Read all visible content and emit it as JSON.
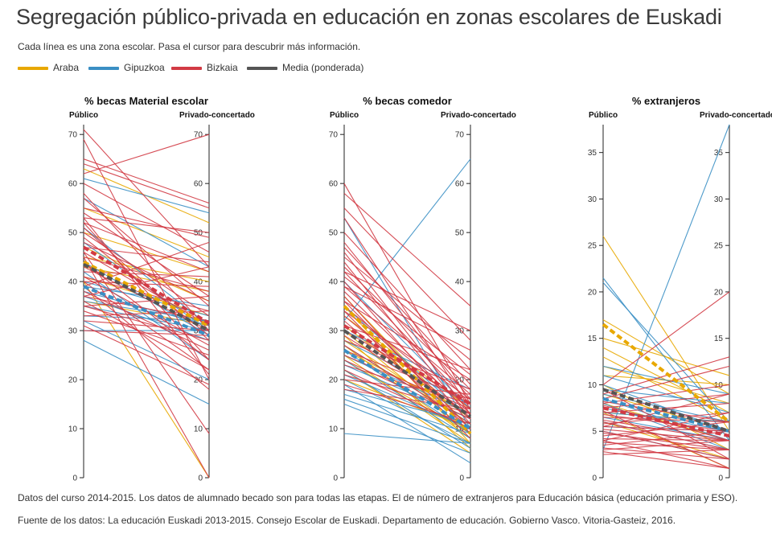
{
  "title": "Segregación público-privada en educación en zonas escolares de Euskadi",
  "subtitle": "Cada línea es una zona escolar. Pasa el cursor para descubrir más información.",
  "legend": [
    {
      "label": "Araba",
      "color": "#e8a800"
    },
    {
      "label": "Gipuzkoa",
      "color": "#3a8fc4"
    },
    {
      "label": "Bizkaia",
      "color": "#d23a44"
    },
    {
      "label": "Media (ponderada)",
      "color": "#555555"
    }
  ],
  "footnote_1": "Datos del curso 2014-2015. Los datos de alumnado becado son para todas las etapas. El de número de extranjeros para Educación básica (educación primaria y ESO).",
  "footnote_2": "Fuente de los datos: La educación Euskadi 2013-2015. Consejo Escolar de Euskadi. Departamento de educación. Gobierno Vasco. Vitoria-Gasteiz, 2016.",
  "chart_data": [
    {
      "type": "line",
      "title": "% becas Material escolar",
      "left_axis_label": "Público",
      "right_axis_label": "Privado-concertado",
      "ylim": [
        0,
        72
      ],
      "ticks": [
        0,
        10,
        20,
        30,
        40,
        50,
        60,
        70
      ],
      "series": [
        {
          "group": "Araba",
          "values": [
            [
              63,
              52
            ],
            [
              55,
              45
            ],
            [
              50,
              42
            ],
            [
              47,
              36
            ],
            [
              45,
              40
            ],
            [
              43,
              38
            ],
            [
              41,
              33
            ],
            [
              40,
              0
            ],
            [
              36,
              31
            ]
          ]
        },
        {
          "group": "Gipuzkoa",
          "values": [
            [
              61,
              54
            ],
            [
              57,
              43
            ],
            [
              51,
              31
            ],
            [
              48,
              30
            ],
            [
              44,
              29
            ],
            [
              42,
              24
            ],
            [
              40,
              33
            ],
            [
              39,
              35
            ],
            [
              38,
              31
            ],
            [
              37,
              28
            ],
            [
              36,
              32
            ],
            [
              35,
              30
            ],
            [
              33,
              32
            ],
            [
              32,
              20
            ],
            [
              30,
              30
            ],
            [
              28,
              15
            ]
          ]
        },
        {
          "group": "Bizkaia",
          "values": [
            [
              71,
              43
            ],
            [
              69,
              20
            ],
            [
              65,
              56
            ],
            [
              64,
              55
            ],
            [
              62,
              70
            ],
            [
              60,
              46
            ],
            [
              58,
              30
            ],
            [
              55,
              49
            ],
            [
              54,
              37
            ],
            [
              53,
              21
            ],
            [
              52,
              42
            ],
            [
              51,
              28
            ],
            [
              50,
              33
            ],
            [
              49,
              29
            ],
            [
              48,
              36
            ],
            [
              47,
              44
            ],
            [
              46,
              31
            ],
            [
              45,
              38
            ],
            [
              44,
              24
            ],
            [
              43,
              30
            ],
            [
              42,
              41
            ],
            [
              41,
              27
            ],
            [
              41,
              34
            ],
            [
              40,
              22
            ],
            [
              40,
              39
            ],
            [
              39,
              18
            ],
            [
              39,
              48
            ],
            [
              38,
              26
            ],
            [
              37,
              32
            ],
            [
              37,
              43
            ],
            [
              36,
              22
            ],
            [
              35,
              37
            ],
            [
              35,
              28
            ],
            [
              34,
              25
            ],
            [
              33,
              34
            ],
            [
              32,
              30
            ],
            [
              31,
              19
            ],
            [
              30,
              29
            ],
            [
              46,
              9
            ],
            [
              45,
              0
            ],
            [
              52,
              24
            ],
            [
              57,
              35
            ],
            [
              53,
              50
            ]
          ]
        }
      ],
      "averages": [
        {
          "group": "Araba",
          "values": [
            44,
            31
          ]
        },
        {
          "group": "Gipuzkoa",
          "values": [
            39,
            29
          ]
        },
        {
          "group": "Bizkaia",
          "values": [
            47,
            31.5
          ]
        },
        {
          "group": "Media (ponderada)",
          "values": [
            43.5,
            30
          ]
        }
      ]
    },
    {
      "type": "line",
      "title": "% becas comedor",
      "left_axis_label": "Público",
      "right_axis_label": "Privado-concertado",
      "ylim": [
        0,
        72
      ],
      "ticks": [
        0,
        10,
        20,
        30,
        40,
        50,
        60,
        70
      ],
      "series": [
        {
          "group": "Araba",
          "values": [
            [
              37,
              10
            ],
            [
              35,
              7
            ],
            [
              33,
              14
            ],
            [
              31,
              12
            ],
            [
              30,
              9
            ],
            [
              29,
              6
            ],
            [
              28,
              11
            ],
            [
              27,
              8
            ],
            [
              26,
              13
            ],
            [
              25,
              7
            ],
            [
              24,
              9
            ],
            [
              22,
              5
            ],
            [
              20,
              10
            ]
          ]
        },
        {
          "group": "Gipuzkoa",
          "values": [
            [
              53,
              10
            ],
            [
              40,
              14
            ],
            [
              35,
              12
            ],
            [
              32,
              65
            ],
            [
              30,
              18
            ],
            [
              28,
              15
            ],
            [
              27,
              11
            ],
            [
              26,
              9
            ],
            [
              25,
              13
            ],
            [
              24,
              8
            ],
            [
              23,
              12
            ],
            [
              22,
              6
            ],
            [
              21,
              10
            ],
            [
              20,
              7
            ],
            [
              19,
              3
            ],
            [
              18,
              11
            ],
            [
              17,
              9
            ],
            [
              16,
              7
            ],
            [
              15,
              5
            ],
            [
              9,
              7
            ]
          ]
        },
        {
          "group": "Bizkaia",
          "values": [
            [
              60,
              15
            ],
            [
              58,
              35
            ],
            [
              55,
              28
            ],
            [
              53,
              14
            ],
            [
              50,
              22
            ],
            [
              48,
              16
            ],
            [
              47,
              19
            ],
            [
              46,
              13
            ],
            [
              45,
              24
            ],
            [
              44,
              12
            ],
            [
              43,
              18
            ],
            [
              42,
              15
            ],
            [
              41,
              21
            ],
            [
              40,
              11
            ],
            [
              39,
              17
            ],
            [
              38,
              13
            ],
            [
              37,
              9
            ],
            [
              36,
              20
            ],
            [
              35,
              14
            ],
            [
              34,
              16
            ],
            [
              33,
              12
            ],
            [
              32,
              10
            ],
            [
              31,
              22
            ],
            [
              30,
              15
            ],
            [
              29,
              13
            ],
            [
              28,
              18
            ],
            [
              27,
              11
            ],
            [
              26,
              16
            ],
            [
              25,
              14
            ],
            [
              24,
              12
            ],
            [
              23,
              15
            ],
            [
              22,
              10
            ],
            [
              21,
              13
            ],
            [
              20,
              17
            ],
            [
              19,
              11
            ],
            [
              18,
              14
            ],
            [
              42,
              30
            ],
            [
              39,
              26
            ],
            [
              36,
              10
            ],
            [
              34,
              8
            ]
          ]
        }
      ],
      "averages": [
        {
          "group": "Araba",
          "values": [
            35,
            9
          ]
        },
        {
          "group": "Gipuzkoa",
          "values": [
            26,
            10
          ]
        },
        {
          "group": "Bizkaia",
          "values": [
            31,
            15
          ]
        },
        {
          "group": "Media (ponderada)",
          "values": [
            30,
            12.5
          ]
        }
      ]
    },
    {
      "type": "line",
      "title": "% extranjeros",
      "left_axis_label": "Público",
      "right_axis_label": "Privado-concertado",
      "ylim": [
        0,
        38
      ],
      "ticks": [
        0,
        5,
        10,
        15,
        20,
        25,
        30,
        35
      ],
      "series": [
        {
          "group": "Araba",
          "values": [
            [
              26,
              5
            ],
            [
              17,
              9
            ],
            [
              15,
              11
            ],
            [
              14,
              7
            ],
            [
              13,
              6
            ],
            [
              12,
              8
            ],
            [
              11,
              10
            ],
            [
              10,
              3
            ],
            [
              9,
              5
            ],
            [
              8,
              4
            ],
            [
              7,
              1
            ],
            [
              7,
              6
            ],
            [
              6,
              2
            ]
          ]
        },
        {
          "group": "Gipuzkoa",
          "values": [
            [
              21.5,
              4
            ],
            [
              21,
              6
            ],
            [
              3,
              38
            ],
            [
              12,
              9
            ],
            [
              11,
              7
            ],
            [
              10,
              5
            ],
            [
              9.5,
              8
            ],
            [
              9,
              6
            ],
            [
              8.5,
              4
            ],
            [
              8,
              3
            ],
            [
              7.5,
              5
            ],
            [
              7,
              6
            ],
            [
              6.5,
              4
            ],
            [
              6,
              3
            ],
            [
              5.5,
              5
            ],
            [
              5,
              2
            ]
          ]
        },
        {
          "group": "Bizkaia",
          "values": [
            [
              10,
              20
            ],
            [
              9,
              13
            ],
            [
              8.5,
              12
            ],
            [
              8,
              10
            ],
            [
              7.5,
              9
            ],
            [
              7,
              8
            ],
            [
              6.8,
              5
            ],
            [
              6.5,
              6
            ],
            [
              6.2,
              4
            ],
            [
              6,
              3
            ],
            [
              5.8,
              7
            ],
            [
              5.5,
              5
            ],
            [
              5.2,
              4
            ],
            [
              5,
              2
            ],
            [
              4.8,
              3
            ],
            [
              4.5,
              6
            ],
            [
              4.2,
              4
            ],
            [
              4,
              1
            ],
            [
              3.8,
              3
            ],
            [
              3.5,
              5
            ],
            [
              3.2,
              2
            ],
            [
              3,
              4
            ],
            [
              2.8,
              1
            ],
            [
              2.5,
              3
            ],
            [
              9.5,
              2
            ],
            [
              8.2,
              6
            ],
            [
              7.2,
              1
            ],
            [
              5.5,
              9
            ],
            [
              4,
              7
            ],
            [
              7.8,
              4
            ]
          ]
        }
      ],
      "averages": [
        {
          "group": "Araba",
          "values": [
            16.5,
            6
          ]
        },
        {
          "group": "Gipuzkoa",
          "values": [
            8.5,
            5
          ]
        },
        {
          "group": "Bizkaia",
          "values": [
            7.5,
            4.5
          ]
        },
        {
          "group": "Media (ponderada)",
          "values": [
            9.5,
            5
          ]
        }
      ]
    }
  ]
}
